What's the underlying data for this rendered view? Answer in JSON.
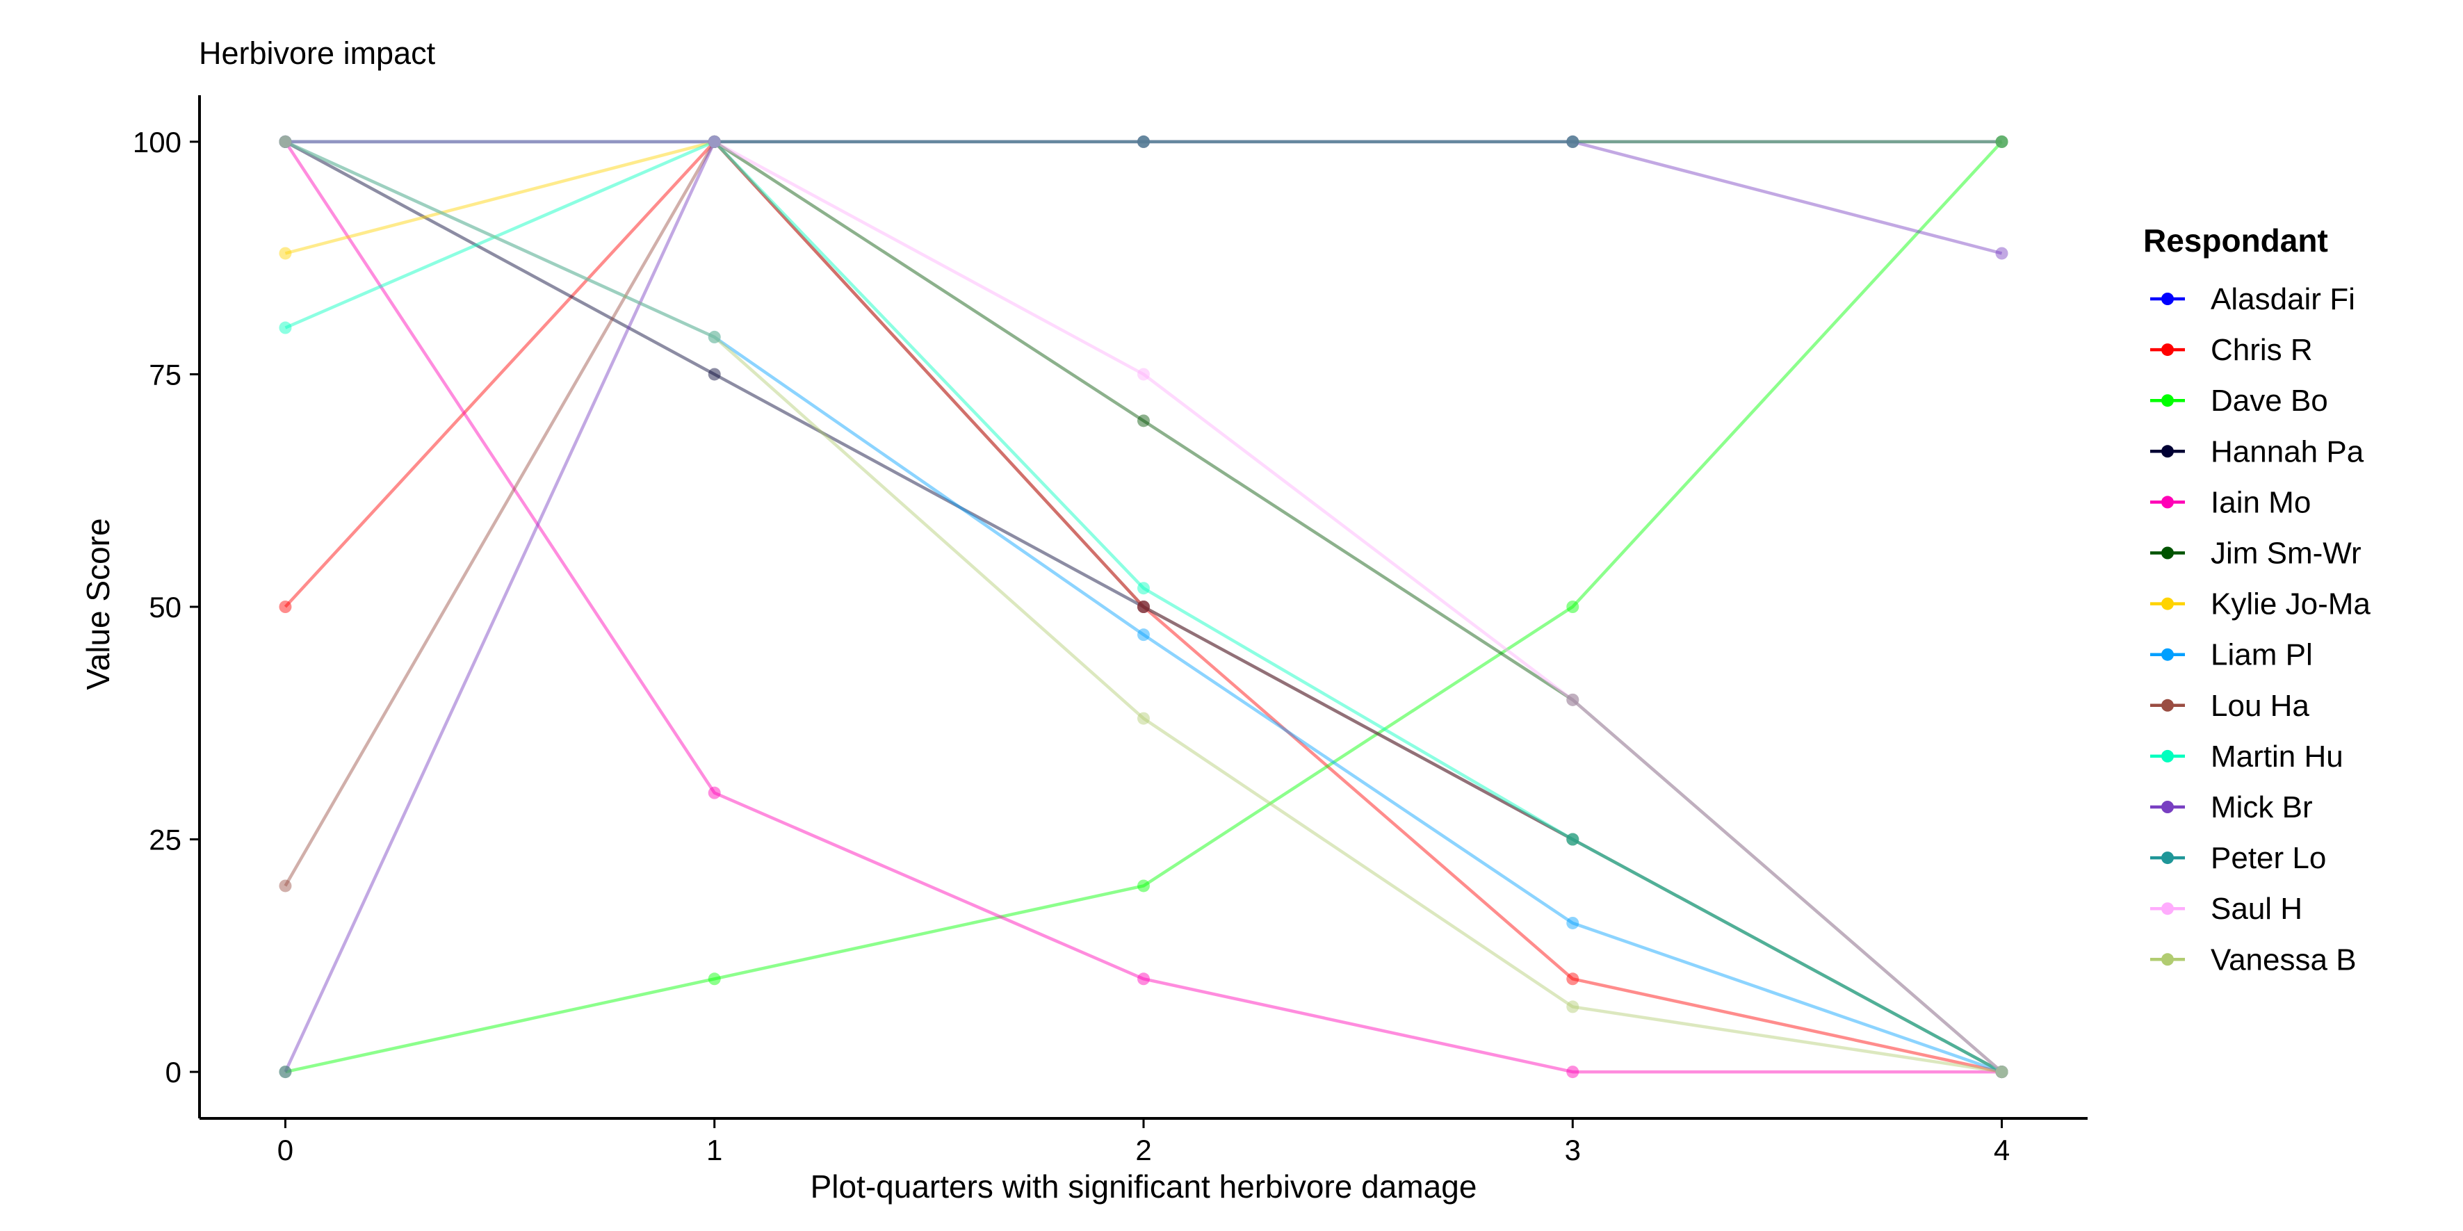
{
  "chart_data": {
    "type": "line",
    "title": "Herbivore impact",
    "xlabel": "Plot-quarters with significant herbivore damage",
    "ylabel": "Value Score",
    "x": [
      0,
      1,
      2,
      3,
      4
    ],
    "xlim": [
      -0.2,
      4.2
    ],
    "ylim": [
      -5,
      105
    ],
    "x_ticks": [
      "0",
      "1",
      "2",
      "3",
      "4"
    ],
    "y_ticks": [
      "0",
      "25",
      "50",
      "75",
      "100"
    ],
    "y_tick_values": [
      0,
      25,
      50,
      75,
      100
    ],
    "grid": false,
    "legend_title": "Respondant",
    "legend_position": "right",
    "series": [
      {
        "name": "Alasdair Fi",
        "color": "#0000FF",
        "values": [
          100,
          100,
          100,
          100,
          100
        ]
      },
      {
        "name": "Chris R",
        "color": "#FF0000",
        "values": [
          50,
          100,
          50,
          10,
          0
        ]
      },
      {
        "name": "Dave Bo",
        "color": "#00FF00",
        "values": [
          0,
          10,
          20,
          50,
          100
        ]
      },
      {
        "name": "Hannah Pa",
        "color": "#000033",
        "values": [
          100,
          75,
          50,
          25,
          0
        ]
      },
      {
        "name": "Iain Mo",
        "color": "#FF00B6",
        "values": [
          100,
          30,
          10,
          0,
          0
        ]
      },
      {
        "name": "Jim Sm-Wr",
        "color": "#005300",
        "values": [
          100,
          100,
          70,
          40,
          0
        ]
      },
      {
        "name": "Kylie Jo-Ma",
        "color": "#FFD300",
        "values": [
          88,
          100,
          100,
          100,
          100
        ]
      },
      {
        "name": "Liam Pl",
        "color": "#009FFF",
        "values": [
          100,
          79,
          47,
          16,
          0
        ]
      },
      {
        "name": "Lou Ha",
        "color": "#9A4D42",
        "values": [
          20,
          100,
          50,
          25,
          0
        ]
      },
      {
        "name": "Martin Hu",
        "color": "#00FFBE",
        "values": [
          80,
          100,
          52,
          25,
          0
        ]
      },
      {
        "name": "Mick Br",
        "color": "#783FC1",
        "values": [
          0,
          100,
          100,
          100,
          88
        ]
      },
      {
        "name": "Peter Lo",
        "color": "#1F9698",
        "values": [
          100,
          100,
          100,
          100,
          100
        ]
      },
      {
        "name": "Saul H",
        "color": "#FFACFD",
        "values": [
          100,
          100,
          75,
          40,
          0
        ]
      },
      {
        "name": "Vanessa B",
        "color": "#B1CC71",
        "values": [
          100,
          79,
          38,
          7,
          0
        ]
      }
    ]
  }
}
